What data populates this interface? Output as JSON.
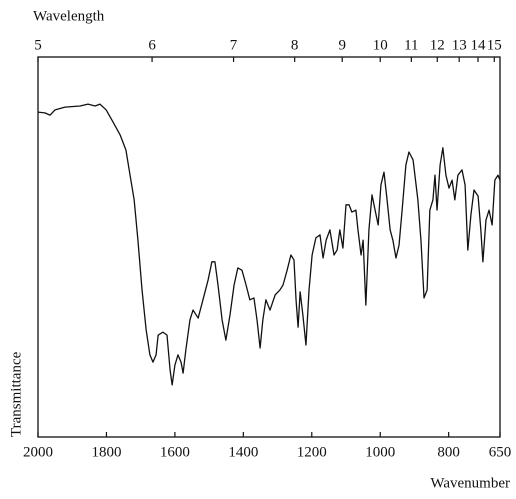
{
  "chart_data": {
    "type": "line",
    "x2label": "Wavelength",
    "xlabel": "Wavenumber",
    "ylabel": "Transmittance",
    "color": "#111111",
    "xlim": [
      2000,
      650
    ],
    "xticks": [
      2000,
      1800,
      1600,
      1400,
      1200,
      1000,
      800,
      650
    ],
    "x2scale": "reciprocal",
    "x2ticks": [
      5,
      6,
      7,
      8,
      9,
      10,
      11,
      12,
      13,
      14,
      15
    ],
    "ylim": [
      0,
      100
    ],
    "x": [
      2000,
      1980,
      1965,
      1950,
      1921,
      1877,
      1854,
      1833,
      1819,
      1801,
      1784,
      1760,
      1743,
      1731,
      1719,
      1708,
      1696,
      1684,
      1673,
      1664,
      1655,
      1649,
      1635,
      1623,
      1614,
      1608,
      1600,
      1591,
      1582,
      1576,
      1568,
      1556,
      1547,
      1532,
      1518,
      1503,
      1492,
      1483,
      1474,
      1462,
      1451,
      1439,
      1427,
      1416,
      1404,
      1392,
      1381,
      1369,
      1360,
      1351,
      1343,
      1334,
      1322,
      1307,
      1293,
      1284,
      1272,
      1261,
      1252,
      1246,
      1240,
      1234,
      1226,
      1217,
      1208,
      1199,
      1188,
      1176,
      1167,
      1158,
      1147,
      1135,
      1126,
      1118,
      1109,
      1100,
      1091,
      1083,
      1071,
      1065,
      1056,
      1050,
      1042,
      1033,
      1024,
      1015,
      1006,
      998,
      989,
      980,
      971,
      963,
      954,
      945,
      936,
      925,
      916,
      904,
      890,
      881,
      872,
      863,
      855,
      846,
      840,
      834,
      825,
      817,
      808,
      799,
      790,
      782,
      773,
      761,
      752,
      744,
      735,
      726,
      714,
      706,
      700,
      691,
      682,
      673,
      665,
      656,
      650
    ],
    "values": [
      85.5,
      85.3,
      84.7,
      86.1,
      86.8,
      87.1,
      87.6,
      87.1,
      87.6,
      86.1,
      83.4,
      79.5,
      75.5,
      68.9,
      62.4,
      51.8,
      38.7,
      28.2,
      21.6,
      19.7,
      21.6,
      26.8,
      27.6,
      26.8,
      17.6,
      13.7,
      18.9,
      21.6,
      19.7,
      16.8,
      22.9,
      30.8,
      33.4,
      31.3,
      36.1,
      41.3,
      46.1,
      46.1,
      40.0,
      30.8,
      25.5,
      32.1,
      40.0,
      44.5,
      43.9,
      40.0,
      36.1,
      36.6,
      30.8,
      23.4,
      30.8,
      36.1,
      33.4,
      37.4,
      38.7,
      40.0,
      43.9,
      47.9,
      46.6,
      36.1,
      28.9,
      38.2,
      32.1,
      24.2,
      38.7,
      47.9,
      52.4,
      53.2,
      47.1,
      51.8,
      54.5,
      47.9,
      49.2,
      54.5,
      49.7,
      61.1,
      61.1,
      59.2,
      59.7,
      54.5,
      47.9,
      51.8,
      34.7,
      54.5,
      63.7,
      59.7,
      55.8,
      66.3,
      69.7,
      62.4,
      54.5,
      51.8,
      47.1,
      50.5,
      59.7,
      71.6,
      75.0,
      72.9,
      62.4,
      51.8,
      36.6,
      38.7,
      59.7,
      62.4,
      68.9,
      59.7,
      71.6,
      76.1,
      68.9,
      65.5,
      67.6,
      62.4,
      68.9,
      70.3,
      66.3,
      49.2,
      58.4,
      65.0,
      63.4,
      54.5,
      46.1,
      57.1,
      59.7,
      55.8,
      67.6,
      68.9,
      67.6
    ]
  }
}
